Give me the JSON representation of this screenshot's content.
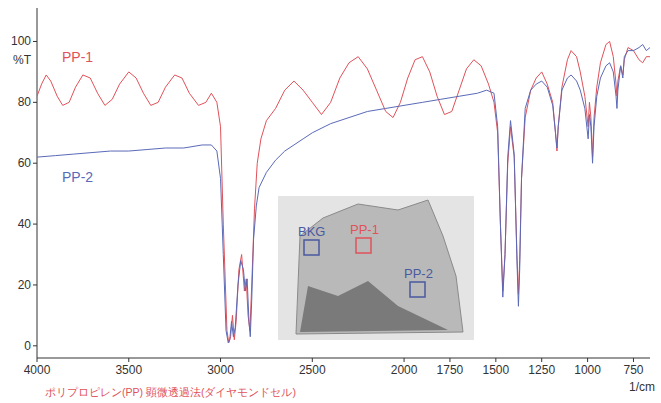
{
  "chart_data": {
    "type": "line",
    "x_label": "1/cm",
    "y_label": "%T",
    "caption": "ポリプロピレン(PP) 顕微透過法(ダイヤモンドセル)",
    "xlim": [
      4000,
      660
    ],
    "ylim": [
      -4,
      111
    ],
    "xticks": [
      4000,
      3500,
      3000,
      2500,
      2000,
      1750,
      1500,
      1250,
      1000,
      750
    ],
    "yticks": [
      0,
      20,
      40,
      60,
      80,
      100
    ],
    "grid": false,
    "series": [
      {
        "name": "PP-1",
        "color": "#e0525a",
        "x": [
          4000,
          3975,
          3950,
          3925,
          3890,
          3860,
          3825,
          3790,
          3750,
          3710,
          3670,
          3630,
          3590,
          3550,
          3500,
          3460,
          3420,
          3380,
          3340,
          3300,
          3250,
          3210,
          3170,
          3120,
          3080,
          3050,
          3020,
          3000,
          2985,
          2965,
          2955,
          2945,
          2935,
          2925,
          2915,
          2900,
          2885,
          2870,
          2860,
          2850,
          2840,
          2830,
          2815,
          2800,
          2780,
          2750,
          2700,
          2650,
          2600,
          2550,
          2500,
          2450,
          2400,
          2350,
          2300,
          2250,
          2200,
          2150,
          2100,
          2060,
          2020,
          1980,
          1940,
          1900,
          1860,
          1820,
          1780,
          1740,
          1700,
          1660,
          1620,
          1580,
          1540,
          1510,
          1490,
          1475,
          1462,
          1450,
          1435,
          1420,
          1400,
          1385,
          1377,
          1370,
          1360,
          1340,
          1310,
          1280,
          1250,
          1220,
          1190,
          1175,
          1167,
          1160,
          1140,
          1110,
          1090,
          1060,
          1040,
          1015,
          997,
          990,
          982,
          973,
          965,
          950,
          930,
          900,
          880,
          860,
          845,
          840,
          835,
          820,
          808,
          800,
          780,
          750,
          720,
          700,
          680,
          660
        ],
        "values": [
          82,
          86,
          89,
          87,
          82,
          79,
          80,
          85,
          89,
          88,
          83,
          79,
          81,
          86,
          90,
          88,
          83,
          79,
          80,
          85,
          89,
          88,
          83,
          79,
          80,
          83,
          80,
          72,
          40,
          5,
          1,
          3,
          10,
          2,
          8,
          25,
          30,
          18,
          22,
          10,
          5,
          20,
          45,
          60,
          68,
          74,
          78,
          84,
          87,
          84,
          80,
          76,
          80,
          88,
          93,
          95,
          91,
          84,
          77,
          75,
          80,
          88,
          94,
          95,
          90,
          82,
          76,
          77,
          84,
          91,
          94,
          92,
          86,
          80,
          70,
          40,
          18,
          30,
          60,
          72,
          62,
          30,
          17,
          28,
          55,
          75,
          84,
          88,
          90,
          86,
          80,
          70,
          64,
          72,
          85,
          94,
          97,
          95,
          90,
          82,
          72,
          80,
          75,
          62,
          75,
          85,
          93,
          99,
          100,
          95,
          86,
          82,
          87,
          92,
          89,
          94,
          98,
          97,
          94,
          93,
          95,
          95
        ]
      },
      {
        "name": "PP-2",
        "color": "#5a6ab8",
        "x": [
          4000,
          3900,
          3800,
          3700,
          3600,
          3500,
          3400,
          3300,
          3200,
          3100,
          3050,
          3020,
          3000,
          2985,
          2970,
          2958,
          2950,
          2940,
          2930,
          2920,
          2905,
          2890,
          2875,
          2865,
          2855,
          2845,
          2838,
          2830,
          2820,
          2805,
          2790,
          2750,
          2700,
          2650,
          2600,
          2550,
          2500,
          2400,
          2300,
          2200,
          2100,
          2000,
          1900,
          1800,
          1700,
          1600,
          1550,
          1510,
          1490,
          1475,
          1462,
          1450,
          1435,
          1420,
          1400,
          1385,
          1377,
          1370,
          1360,
          1340,
          1310,
          1280,
          1250,
          1220,
          1190,
          1175,
          1167,
          1160,
          1140,
          1110,
          1090,
          1060,
          1040,
          1015,
          997,
          990,
          982,
          973,
          965,
          950,
          930,
          900,
          880,
          860,
          845,
          840,
          835,
          820,
          808,
          800,
          780,
          750,
          720,
          700,
          680,
          660
        ],
        "values": [
          62,
          62.5,
          63,
          63.5,
          64,
          64,
          64.5,
          65,
          65,
          66,
          66,
          64,
          55,
          30,
          5,
          1,
          2,
          8,
          3,
          6,
          20,
          28,
          25,
          18,
          22,
          8,
          3,
          15,
          35,
          46,
          52,
          57,
          61,
          64,
          66,
          68,
          70,
          73,
          75,
          77,
          78,
          79,
          80,
          81,
          82,
          83,
          84,
          83,
          72,
          40,
          16,
          30,
          62,
          74,
          63,
          28,
          13,
          25,
          55,
          78,
          84,
          86,
          87,
          85,
          79,
          70,
          65,
          72,
          84,
          88,
          89,
          87,
          84,
          78,
          68,
          76,
          72,
          60,
          72,
          82,
          88,
          92,
          93,
          90,
          82,
          78,
          84,
          92,
          88,
          95,
          97,
          97,
          98,
          99,
          97,
          98
        ]
      }
    ],
    "annotations": [
      {
        "text": "BKG",
        "color": "#4a5aa0"
      },
      {
        "text": "PP-1",
        "color": "#e0525a"
      },
      {
        "text": "PP-2",
        "color": "#4a5aa0"
      }
    ]
  }
}
